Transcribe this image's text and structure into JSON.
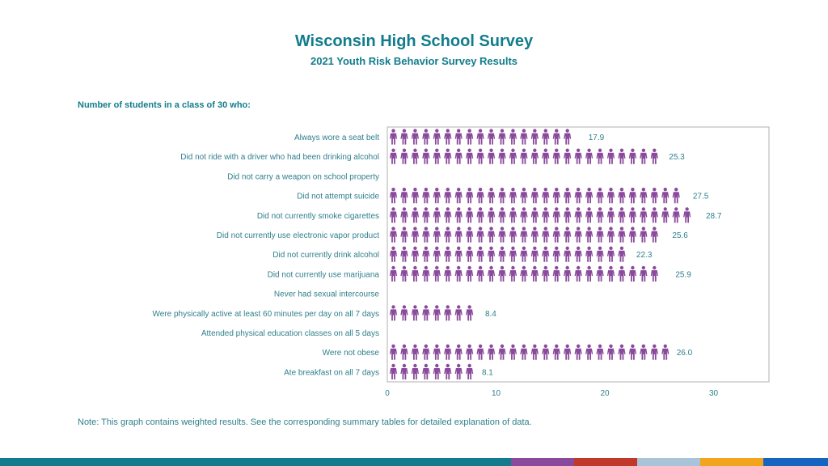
{
  "page": {
    "title": "Wisconsin High School Survey",
    "subtitle": "2021 Youth Risk Behavior Survey Results",
    "section_label": "Number of students in a class of 30 who:",
    "note": "Note: This graph contains weighted results. See the corresponding summary tables for detailed explanation of data."
  },
  "colors": {
    "title": "#127c8c",
    "text": "#2f7f8c",
    "icon": "#8a4a9c",
    "frame": "#b0b0b0",
    "footer": [
      "#127c8c",
      "#8a4a9c",
      "#c0392b",
      "#a9c3d9",
      "#f2a51c",
      "#1565c0"
    ]
  },
  "chart_data": {
    "type": "bar",
    "style": "pictograph",
    "icon": "person-icon",
    "icons_per_unit": 1,
    "categories": [
      "Always wore a seat belt",
      "Did not ride with a driver who had been drinking alcohol",
      "Did not carry a weapon on school property",
      "Did not attempt suicide",
      "Did not currently smoke cigarettes",
      "Did not currently use electronic vapor product",
      "Did not currently drink alcohol",
      "Did not currently use marijuana",
      "Never had sexual intercourse",
      "Were physically active at least 60 minutes per day on all 7 days",
      "Attended physical education classes on all 5 days",
      "Were not obese",
      "Ate breakfast on all 7 days"
    ],
    "values": [
      17.9,
      25.3,
      null,
      27.5,
      28.7,
      25.6,
      22.3,
      25.9,
      null,
      8.4,
      null,
      26.0,
      8.1
    ],
    "value_labels": [
      "17.9",
      "25.3",
      "",
      "27.5",
      "28.7",
      "25.6",
      "22.3",
      "25.9",
      "",
      "8.4",
      "",
      "26.0",
      "8.1"
    ],
    "xlim": [
      0,
      35
    ],
    "xticks": [
      0,
      10,
      20,
      30
    ],
    "xlabel": "",
    "ylabel": "",
    "grid": false
  }
}
